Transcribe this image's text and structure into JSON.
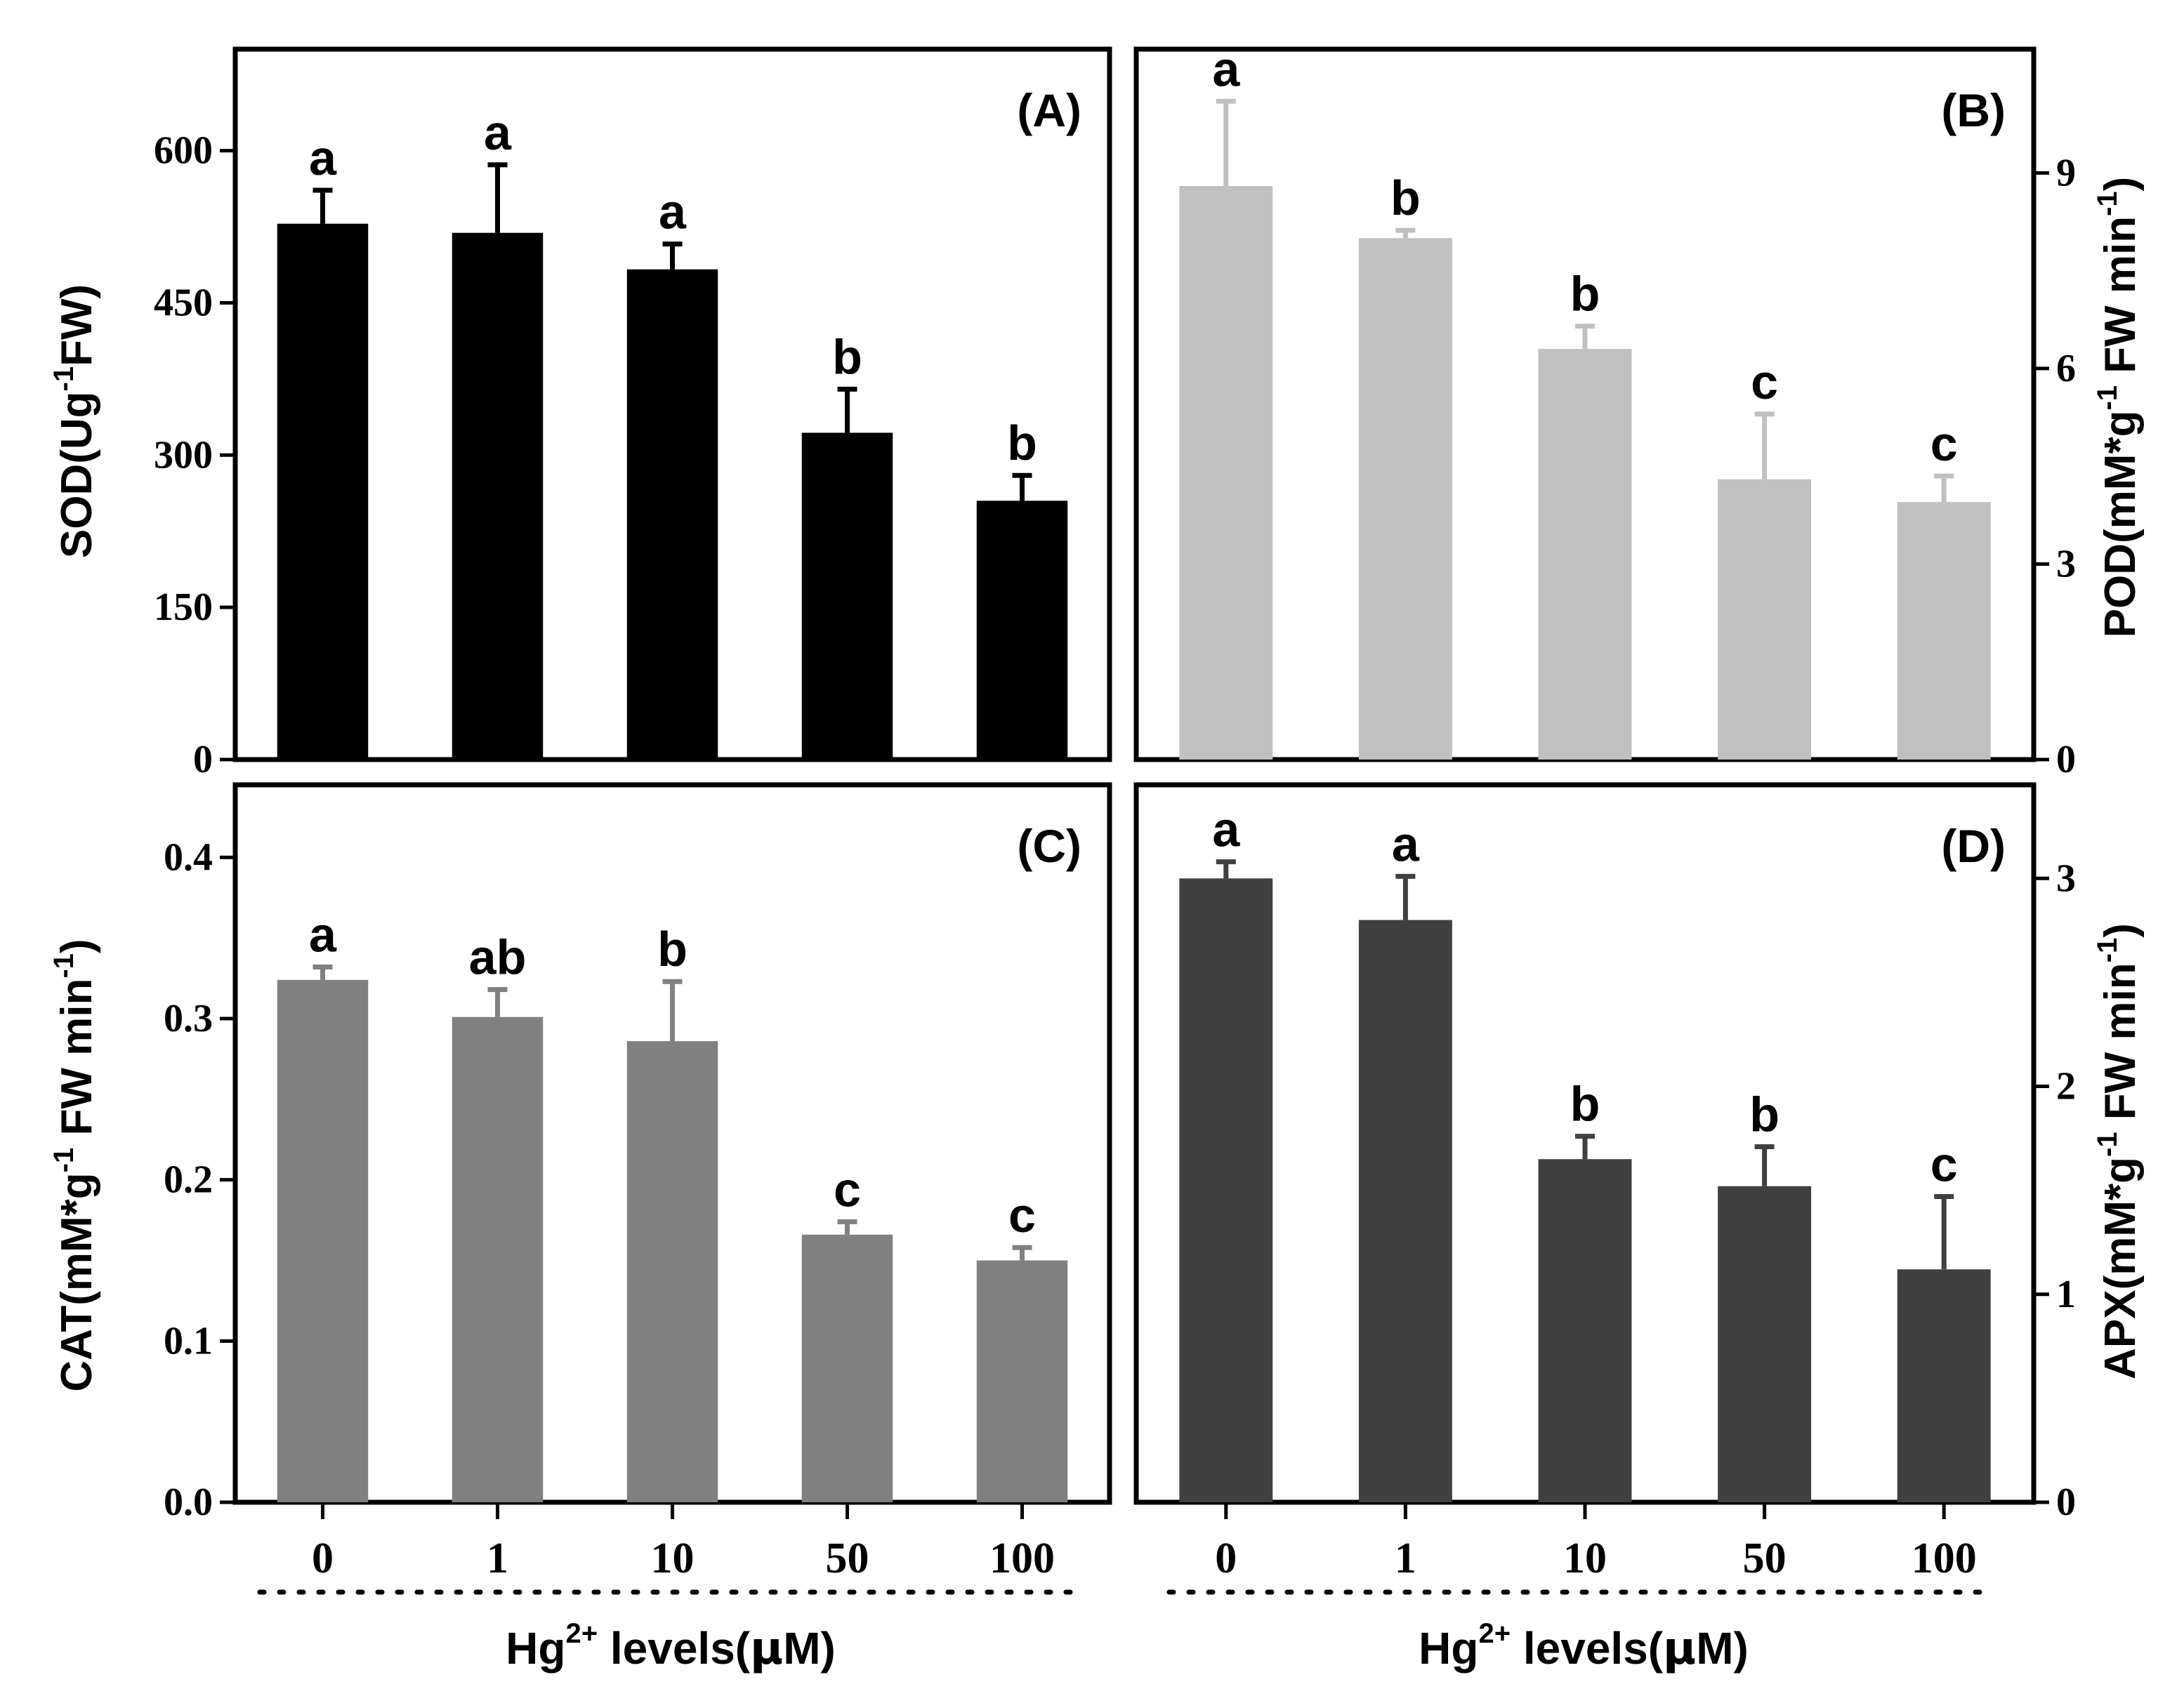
{
  "chart_data": [
    {
      "panel": "(A)",
      "type": "bar",
      "categories": [
        "0",
        "1",
        "10",
        "50",
        "100"
      ],
      "values": [
        528,
        519,
        483,
        322,
        255
      ],
      "errors": [
        33,
        67,
        25,
        43,
        25
      ],
      "letters": [
        "a",
        "a",
        "a",
        "b",
        "b"
      ],
      "ylabel_main": "SOD(Ug",
      "ylabel_sup": "-1",
      "ylabel_tail": "FW)",
      "ylim": [
        0,
        700
      ],
      "yticks": [
        0,
        150,
        300,
        450,
        600
      ],
      "bar_color": "#000000"
    },
    {
      "panel": "(B)",
      "type": "bar",
      "categories": [
        "0",
        "1",
        "10",
        "50",
        "100"
      ],
      "values": [
        8.8,
        8.0,
        6.3,
        4.3,
        3.95
      ],
      "errors": [
        1.3,
        0.12,
        0.35,
        1.0,
        0.4
      ],
      "letters": [
        "a",
        "b",
        "b",
        "c",
        "c"
      ],
      "ylabel_main": "POD(mM*g",
      "ylabel_sup": "-1",
      "ylabel_tail": " FW min",
      "ylabel_sup2": "-1",
      "ylabel_end": ")",
      "ylim": [
        0,
        10.9
      ],
      "yticks": [
        0,
        3,
        6,
        9
      ],
      "bar_color": "#c0c0c0"
    },
    {
      "panel": "(C)",
      "type": "bar",
      "categories": [
        "0",
        "1",
        "10",
        "50",
        "100"
      ],
      "values": [
        0.324,
        0.301,
        0.286,
        0.166,
        0.15
      ],
      "errors": [
        0.008,
        0.017,
        0.037,
        0.008,
        0.008
      ],
      "letters": [
        "a",
        "ab",
        "b",
        "c",
        "c"
      ],
      "ylabel_main": "CAT(mM*g",
      "ylabel_sup": "-1",
      "ylabel_tail": " FW min",
      "ylabel_sup2": "-1",
      "ylabel_end": ")",
      "ylim": [
        0,
        0.445
      ],
      "yticks": [
        0.0,
        0.1,
        0.2,
        0.3,
        0.4
      ],
      "ytick_labels": [
        "0.0",
        "0.1",
        "0.2",
        "0.3",
        "0.4"
      ],
      "xlabel_main": "Hg",
      "xlabel_sup": "2+",
      "xlabel_tail": " levels(",
      "xlabel_mu": "μ",
      "xlabel_end": "M)",
      "bar_color": "#808080"
    },
    {
      "panel": "(D)",
      "type": "bar",
      "categories": [
        "0",
        "1",
        "10",
        "50",
        "100"
      ],
      "values": [
        3.0,
        2.8,
        1.65,
        1.52,
        1.12
      ],
      "errors": [
        0.08,
        0.21,
        0.11,
        0.19,
        0.35
      ],
      "letters": [
        "a",
        "a",
        "b",
        "b",
        "c"
      ],
      "ylabel_main": "APX(mM*g",
      "ylabel_sup": "-1",
      "ylabel_tail": " FW min",
      "ylabel_sup2": "-1",
      "ylabel_end": ")",
      "ylim": [
        0,
        3.45
      ],
      "yticks": [
        0,
        1,
        2,
        3
      ],
      "xlabel_main": "Hg",
      "xlabel_sup": "2+",
      "xlabel_tail": " levels(",
      "xlabel_mu": "μ",
      "xlabel_end": "M)",
      "bar_color": "#404040"
    }
  ]
}
